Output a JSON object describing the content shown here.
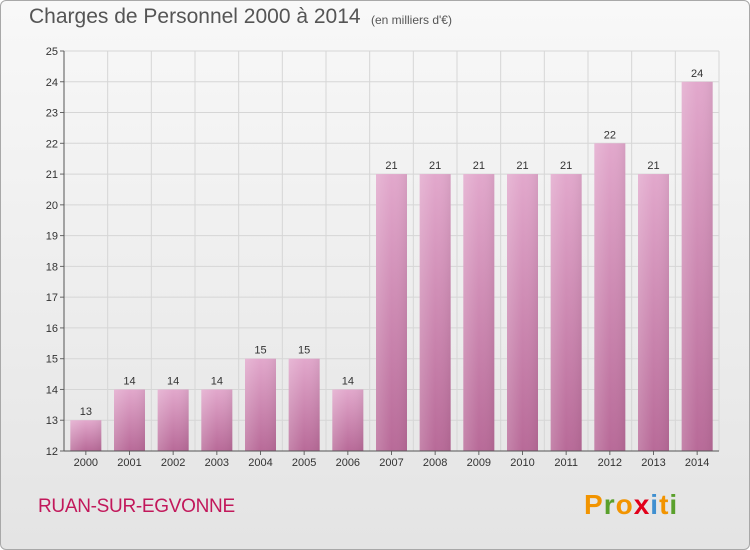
{
  "header": {
    "title": "Charges de Personnel 2000 à 2014",
    "subtitle": "(en milliers d'€)"
  },
  "footer": {
    "place": "RUAN-SUR-EGVONNE",
    "logo_letters": [
      "P",
      "r",
      "o",
      "x",
      "i",
      "t",
      "i"
    ],
    "logo_colors": [
      "#f29400",
      "#5aa02c",
      "#f29400",
      "#e2001a",
      "#3f8fd0",
      "#f29400",
      "#5aa02c"
    ]
  },
  "chart_data": {
    "type": "bar",
    "categories": [
      "2000",
      "2001",
      "2002",
      "2003",
      "2004",
      "2005",
      "2006",
      "2007",
      "2008",
      "2009",
      "2010",
      "2011",
      "2012",
      "2013",
      "2014"
    ],
    "values": [
      13,
      14,
      14,
      14,
      15,
      15,
      14,
      21,
      21,
      21,
      21,
      21,
      22,
      21,
      24
    ],
    "title": "Charges de Personnel 2000 à 2014",
    "subtitle": "(en milliers d'€)",
    "ylim": [
      12,
      25
    ],
    "yticks": [
      12,
      13,
      14,
      15,
      16,
      17,
      18,
      19,
      20,
      21,
      22,
      23,
      24,
      25
    ],
    "grid": true,
    "bar_color": "#cc7fae",
    "grid_color": "#d6d6d6"
  }
}
